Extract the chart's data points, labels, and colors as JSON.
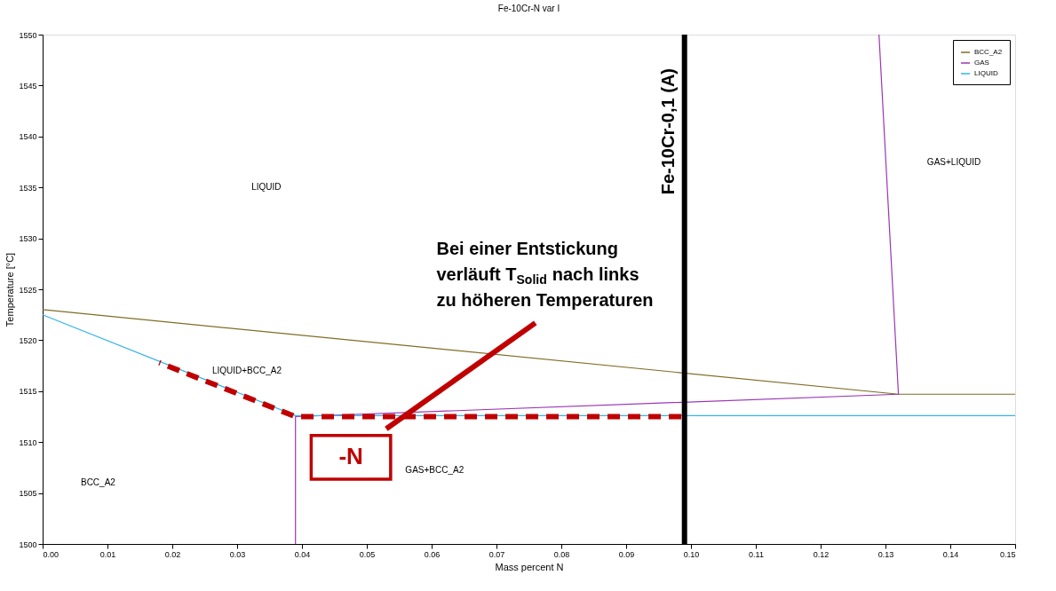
{
  "chart_data": {
    "type": "line",
    "title": "Fe-10Cr-N var I",
    "xlabel": "Mass percent N",
    "ylabel": "Temperature [°C]",
    "xlim": [
      0,
      0.15
    ],
    "xticks": [
      {
        "value": 0,
        "label": "0.00"
      },
      {
        "value": 0.01,
        "label": "0.01"
      },
      {
        "value": 0.02,
        "label": "0.02"
      },
      {
        "value": 0.03,
        "label": "0.03"
      },
      {
        "value": 0.04,
        "label": "0.04"
      },
      {
        "value": 0.05,
        "label": "0.05"
      },
      {
        "value": 0.06,
        "label": "0.06"
      },
      {
        "value": 0.07,
        "label": "0.07"
      },
      {
        "value": 0.08,
        "label": "0.08"
      },
      {
        "value": 0.09,
        "label": "0.09"
      },
      {
        "value": 0.1,
        "label": "0.10"
      },
      {
        "value": 0.11,
        "label": "0.11"
      },
      {
        "value": 0.12,
        "label": "0.12"
      },
      {
        "value": 0.13,
        "label": "0.13"
      },
      {
        "value": 0.14,
        "label": "0.14"
      },
      {
        "value": 0.15,
        "label": "0.15"
      }
    ],
    "ylim": [
      1500,
      1550
    ],
    "yticks": [
      1500,
      1505,
      1510,
      1515,
      1520,
      1525,
      1530,
      1535,
      1540,
      1545,
      1550
    ],
    "series": [
      {
        "name": "BCC_A2",
        "color": "#7f6d25",
        "x": [
          0,
          0.132,
          0.15
        ],
        "values": [
          1523,
          1514.7,
          1514.7
        ]
      },
      {
        "name": "GAS",
        "color": "#9b35b5",
        "x": [
          0.039,
          0.039,
          0.132,
          0.129
        ],
        "values": [
          1500,
          1512.5,
          1514.7,
          1550
        ]
      },
      {
        "name": "LIQUID",
        "color": "#35b4ec",
        "x": [
          0,
          0.039,
          0.15
        ],
        "values": [
          1522.5,
          1512.6,
          1512.6
        ]
      },
      {
        "color": "#c00000",
        "line_style": "dashed",
        "x": [
          0.0985,
          0.039,
          0.018
        ],
        "values": [
          1512.5,
          1512.5,
          1517.8
        ]
      },
      {
        "color": "#c00000",
        "x": [
          0.053,
          0.076
        ],
        "values": [
          1511.3,
          1521.7
        ]
      }
    ],
    "ref_lines": [
      {
        "axis": "x",
        "value": 0.099,
        "label": "Fe-10Cr-0,1 (A)",
        "color": "#000000"
      }
    ],
    "annotations": [
      "LIQUID",
      "LIQUID+BCC_A2",
      "BCC_A2",
      "GAS+BCC_A2",
      "GAS+LIQUID",
      "-N",
      "Bei einer Entstickung\nverläuft T$_{Solid}$ nach links\nzu höheren Temperaturen"
    ],
    "legend": "top right",
    "grid": false,
    "marker": "none",
    "line_style": "solid"
  }
}
